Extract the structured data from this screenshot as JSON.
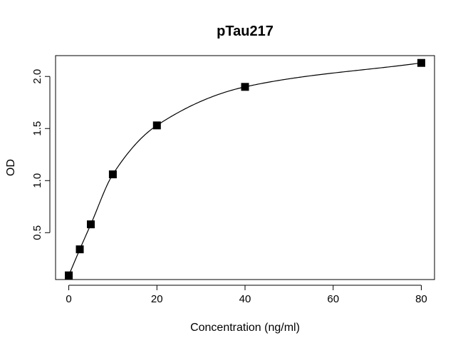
{
  "chart_data": {
    "type": "scatter",
    "title": "pTau217",
    "xlabel": "Concentration (ng/ml)",
    "ylabel": "OD",
    "xlim": [
      -3,
      83
    ],
    "ylim": [
      0.05,
      2.2
    ],
    "xticks": [
      0,
      20,
      40,
      60,
      80
    ],
    "xtick_labels": [
      "0",
      "20",
      "40",
      "60",
      "80"
    ],
    "yticks": [
      0.5,
      1.0,
      1.5,
      2.0
    ],
    "ytick_labels": [
      "0.5",
      "1.0",
      "1.5",
      "2.0"
    ],
    "grid": false,
    "legend": "none",
    "marker": "filled-square",
    "fit_curve": "smooth standard curve through points",
    "series": [
      {
        "x": [
          0,
          2.5,
          5,
          10,
          20,
          40,
          80
        ],
        "y": [
          0.09,
          0.34,
          0.58,
          1.06,
          1.53,
          1.9,
          2.13
        ]
      }
    ],
    "colors": {
      "marker": "#000000",
      "curve": "#000000"
    }
  }
}
